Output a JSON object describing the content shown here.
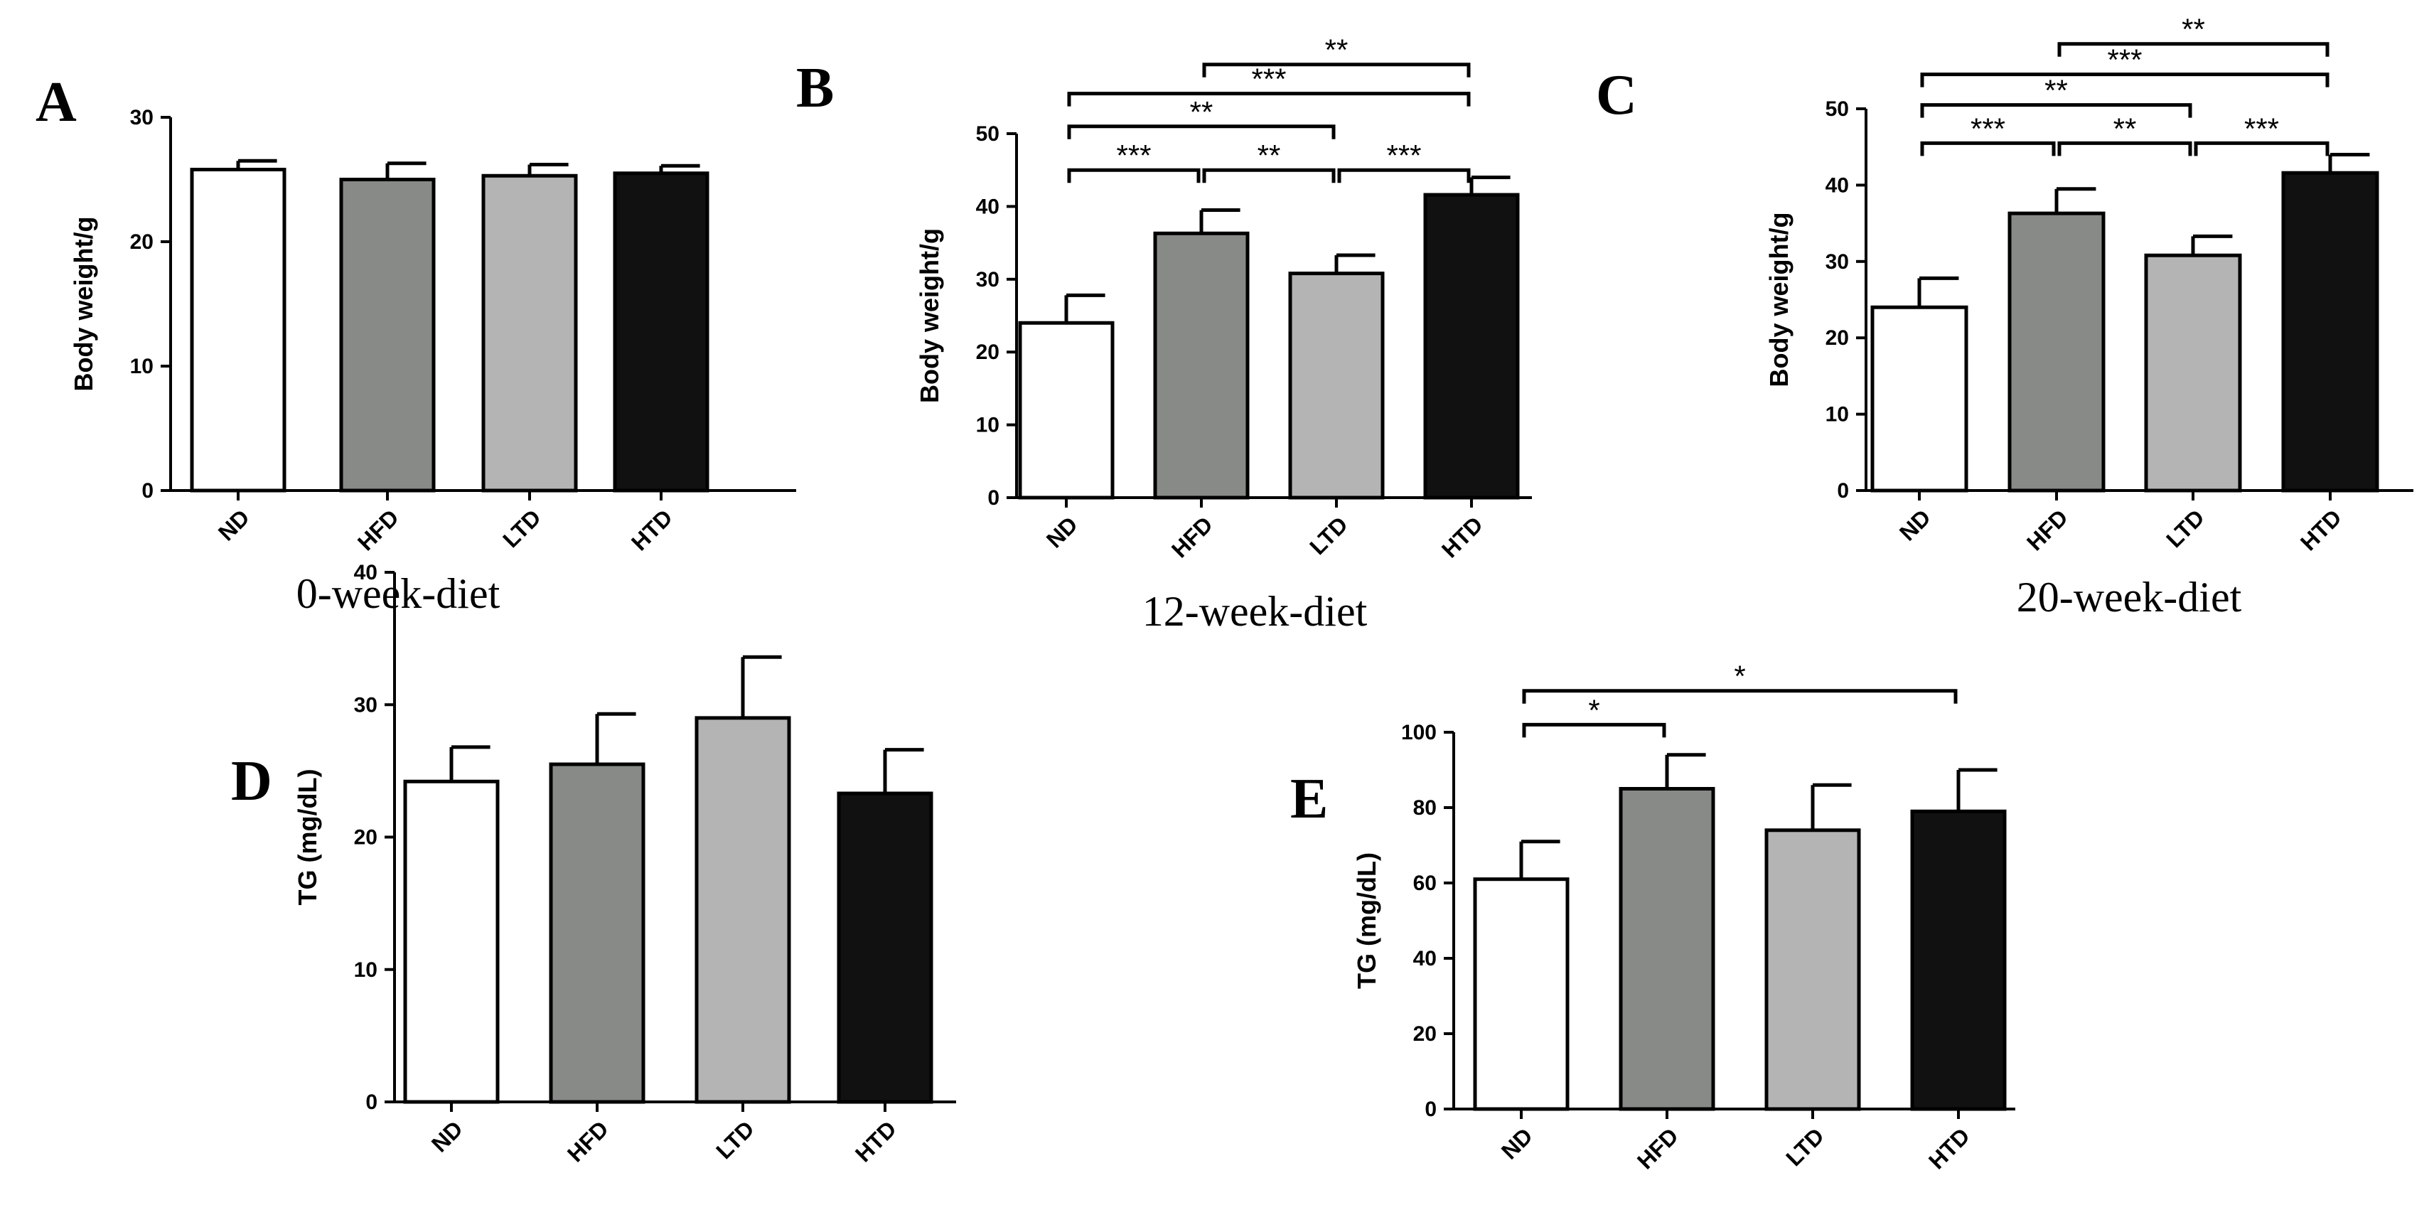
{
  "colors": {
    "ND": "#ffffff",
    "HFD": "#878a87",
    "LTD": "#b4b4b4",
    "HTD": "#111111",
    "stroke": "#000000"
  },
  "chart_data": [
    {
      "type": "bar",
      "panel": "A",
      "caption": "0-week-diet",
      "ylabel": "Body weight/g",
      "categories": [
        "ND",
        "HFD",
        "LTD",
        "HTD"
      ],
      "values": [
        25.8,
        25.0,
        25.3,
        25.5
      ],
      "errors": [
        0.7,
        1.3,
        0.9,
        0.6
      ],
      "ylim": [
        0,
        30
      ],
      "yticks": [
        0,
        10,
        20,
        30
      ],
      "significance": []
    },
    {
      "type": "bar",
      "panel": "B",
      "caption": "12-week-diet",
      "ylabel": "Body weight/g",
      "categories": [
        "ND",
        "HFD",
        "LTD",
        "HTD"
      ],
      "values": [
        24.0,
        36.3,
        30.8,
        41.6
      ],
      "errors": [
        3.8,
        3.2,
        2.5,
        2.4
      ],
      "ylim": [
        0,
        50
      ],
      "yticks": [
        0,
        10,
        20,
        30,
        40,
        50
      ],
      "significance": [
        {
          "from": 0,
          "to": 1,
          "label": "***",
          "level": 45
        },
        {
          "from": 1,
          "to": 2,
          "label": "**",
          "level": 45
        },
        {
          "from": 2,
          "to": 3,
          "label": "***",
          "level": 45
        },
        {
          "from": 0,
          "to": 2,
          "label": "**",
          "level": 51
        },
        {
          "from": 0,
          "to": 3,
          "label": "***",
          "level": 55.5
        },
        {
          "from": 1,
          "to": 3,
          "label": "**",
          "level": 59.5
        }
      ]
    },
    {
      "type": "bar",
      "panel": "C",
      "caption": "20-week-diet",
      "ylabel": "Body weight/g",
      "categories": [
        "ND",
        "HFD",
        "LTD",
        "HTD"
      ],
      "values": [
        24.0,
        36.3,
        30.8,
        41.6
      ],
      "errors": [
        3.8,
        3.2,
        2.5,
        2.4
      ],
      "ylim": [
        0,
        50
      ],
      "yticks": [
        0,
        10,
        20,
        30,
        40,
        50
      ],
      "significance": [
        {
          "from": 0,
          "to": 1,
          "label": "***",
          "level": 45.5
        },
        {
          "from": 1,
          "to": 2,
          "label": "**",
          "level": 45.5
        },
        {
          "from": 2,
          "to": 3,
          "label": "***",
          "level": 45.5
        },
        {
          "from": 0,
          "to": 2,
          "label": "**",
          "level": 50.5
        },
        {
          "from": 0,
          "to": 3,
          "label": "***",
          "level": 54.5
        },
        {
          "from": 1,
          "to": 3,
          "label": "**",
          "level": 58.5
        }
      ]
    },
    {
      "type": "bar",
      "panel": "D",
      "caption": "",
      "ylabel": "TG (mg/dL)",
      "categories": [
        "ND",
        "HFD",
        "LTD",
        "HTD"
      ],
      "values": [
        24.2,
        25.5,
        29.0,
        23.3
      ],
      "errors": [
        2.6,
        3.8,
        4.6,
        3.3
      ],
      "ylim": [
        0,
        40
      ],
      "yticks": [
        0,
        10,
        20,
        30,
        40
      ],
      "significance": []
    },
    {
      "type": "bar",
      "panel": "E",
      "caption": "",
      "ylabel": "TG (mg/dL)",
      "categories": [
        "ND",
        "HFD",
        "LTD",
        "HTD"
      ],
      "values": [
        61.0,
        85.0,
        74.0,
        79.0
      ],
      "errors": [
        10.0,
        9.0,
        12.0,
        11.0
      ],
      "ylim": [
        0,
        100
      ],
      "yticks": [
        0,
        20,
        40,
        60,
        80,
        100
      ],
      "significance": [
        {
          "from": 0,
          "to": 1,
          "label": "*",
          "level": 102
        },
        {
          "from": 0,
          "to": 3,
          "label": "*",
          "level": 111
        }
      ]
    }
  ]
}
